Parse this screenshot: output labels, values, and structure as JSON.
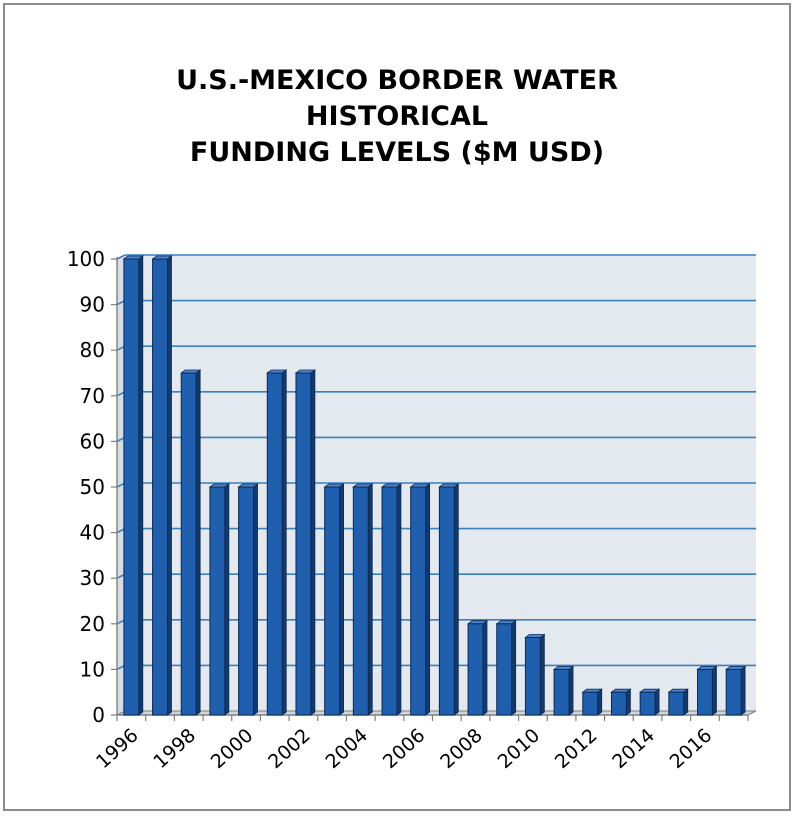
{
  "chart_data": {
    "type": "bar",
    "title_lines": [
      "U.S.-MEXICO BORDER WATER",
      "HISTORICAL",
      "FUNDING LEVELS ($M USD)"
    ],
    "categories": [
      "1996",
      "1997",
      "1998",
      "1999",
      "2000",
      "2001",
      "2002",
      "2003",
      "2004",
      "2005",
      "2006",
      "2007",
      "2008",
      "2009",
      "2010",
      "2011",
      "2012",
      "2013",
      "2014",
      "2015",
      "2016",
      "2017"
    ],
    "x_tick_labels": [
      "1996",
      "",
      "1998",
      "",
      "2000",
      "",
      "2002",
      "",
      "2004",
      "",
      "2006",
      "",
      "2008",
      "",
      "2010",
      "",
      "2012",
      "",
      "2014",
      "",
      "2016",
      ""
    ],
    "values": [
      100,
      100,
      75,
      50,
      50,
      75,
      75,
      50,
      50,
      50,
      50,
      50,
      20,
      20,
      17,
      10,
      5,
      5,
      5,
      5,
      10,
      10
    ],
    "ylim": [
      0,
      100
    ],
    "y_ticks": [
      0,
      10,
      20,
      30,
      40,
      50,
      60,
      70,
      80,
      90,
      100
    ],
    "xlabel": "",
    "ylabel": "",
    "grid": true,
    "legend": "none",
    "colors": {
      "bar_front": "#1f5fae",
      "bar_side": "#123a6e",
      "bar_top": "#4f86cf",
      "bar_outline": "#0b2a55",
      "plot_background": "#e4e9ef",
      "gridline": "#3a7fc1",
      "axis": "#7f7f7f"
    }
  }
}
